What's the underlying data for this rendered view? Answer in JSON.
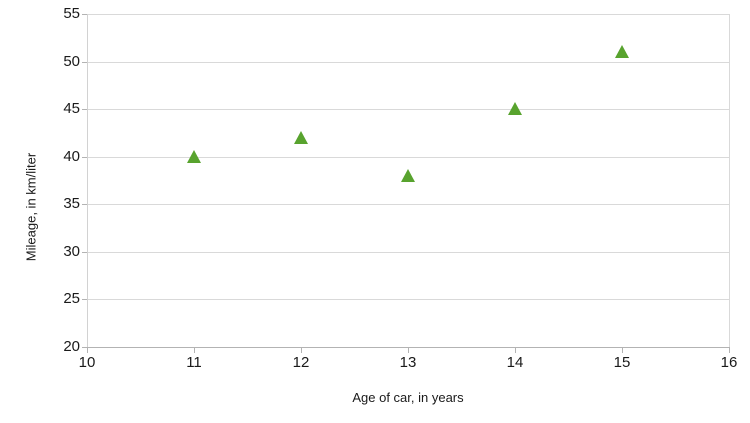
{
  "chart_data": {
    "type": "scatter",
    "title": "",
    "xlabel": "Age of car, in years",
    "ylabel": "Mileage, in km/liter",
    "x": [
      11,
      12,
      13,
      14,
      15
    ],
    "y": [
      40,
      42,
      38,
      45,
      51
    ],
    "xlim": [
      10,
      16
    ],
    "ylim": [
      20,
      55
    ],
    "xticks": [
      10,
      11,
      12,
      13,
      14,
      15,
      16
    ],
    "yticks": [
      20,
      25,
      30,
      35,
      40,
      45,
      50,
      55
    ],
    "grid": "horizontal",
    "legend": "none",
    "marker": {
      "shape": "triangle-up",
      "color": "#58a32e"
    },
    "colors": {
      "gridline": "#d9d9d9",
      "axis": "#b3b3b3",
      "plot_border": "#d2d2d2",
      "text": "#1a1a1a",
      "background": "#ffffff"
    }
  }
}
